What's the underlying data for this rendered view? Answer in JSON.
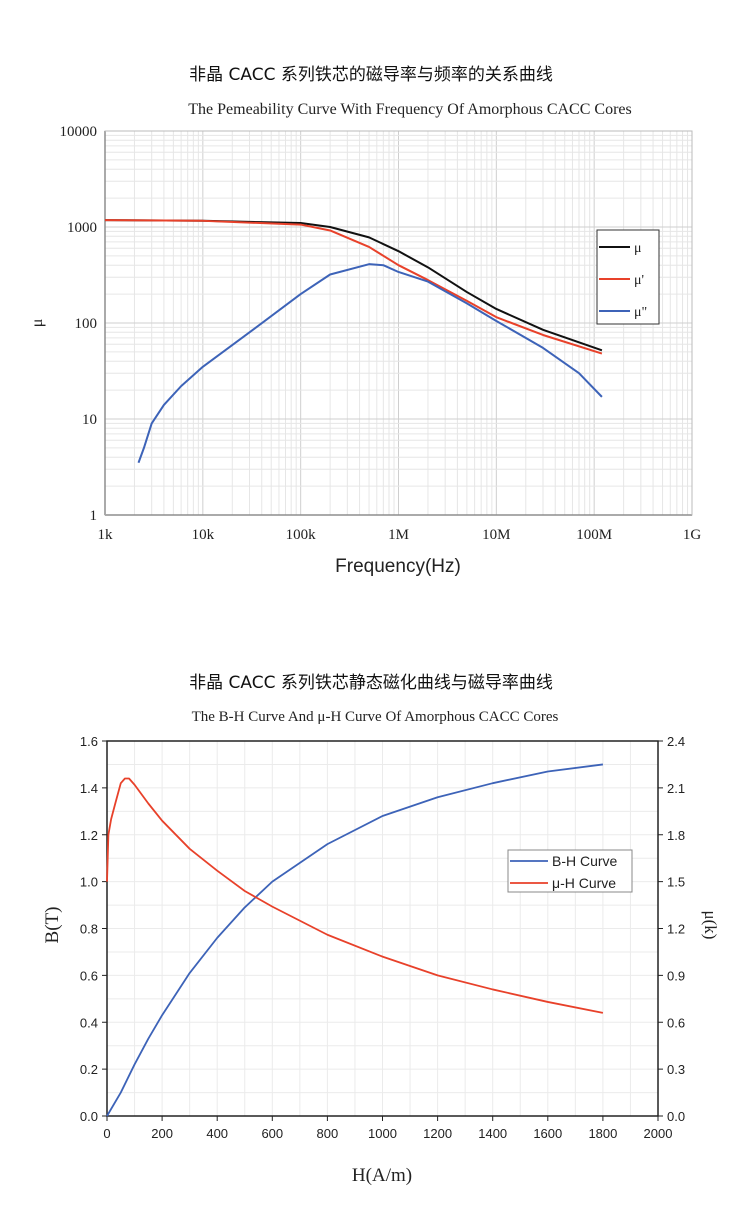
{
  "headings": {
    "chart1_cn": "非晶 CACC 系列铁芯的磁导率与频率的关系曲线",
    "chart2_cn": "非晶 CACC 系列铁芯静态磁化曲线与磁导率曲线"
  },
  "chart_data": [
    {
      "type": "line",
      "title": "The Pemeability Curve With Frequency  Of  Amorphous CACC Cores",
      "xlabel": "Frequency(Hz)",
      "ylabel": "μ",
      "xscale": "log",
      "yscale": "log",
      "xlim": [
        1000,
        1000000000
      ],
      "ylim": [
        1,
        10000
      ],
      "xticks": [
        {
          "v": 1000.0,
          "label": "1k"
        },
        {
          "v": 10000.0,
          "label": "10k"
        },
        {
          "v": 100000.0,
          "label": "100k"
        },
        {
          "v": 1000000.0,
          "label": "1M"
        },
        {
          "v": 10000000.0,
          "label": "10M"
        },
        {
          "v": 100000000.0,
          "label": "100M"
        },
        {
          "v": 1000000000.0,
          "label": "1G"
        }
      ],
      "yticks": [
        {
          "v": 1,
          "label": "1"
        },
        {
          "v": 10,
          "label": "10"
        },
        {
          "v": 100,
          "label": "100"
        },
        {
          "v": 1000,
          "label": "1000"
        },
        {
          "v": 10000,
          "label": "10000"
        }
      ],
      "grid": true,
      "legend": "right",
      "series": [
        {
          "name": "μ",
          "color": "#111111",
          "x": [
            1000.0,
            10000.0,
            100000.0,
            200000.0,
            500000.0,
            1000000.0,
            2000000.0,
            5000000.0,
            10000000.0,
            30000000.0,
            120000000.0
          ],
          "y": [
            1180,
            1160,
            1100,
            1000,
            780,
            560,
            380,
            210,
            140,
            85,
            52
          ]
        },
        {
          "name": "μ'",
          "color": "#e8412a",
          "x": [
            1000.0,
            10000.0,
            100000.0,
            200000.0,
            500000.0,
            1000000.0,
            2000000.0,
            5000000.0,
            10000000.0,
            30000000.0,
            120000000.0
          ],
          "y": [
            1180,
            1160,
            1060,
            920,
            620,
            400,
            280,
            170,
            115,
            75,
            48
          ]
        },
        {
          "name": "μ\"",
          "color": "#3d63b8",
          "x": [
            2200.0,
            2500.0,
            3000.0,
            4000.0,
            6000.0,
            10000.0,
            30000.0,
            100000.0,
            200000.0,
            500000.0,
            700000.0,
            1000000.0,
            2000000.0,
            5000000.0,
            10000000.0,
            30000000.0,
            70000000.0,
            120000000.0
          ],
          "y": [
            3.5,
            5,
            9,
            14,
            22,
            35,
            80,
            200,
            320,
            410,
            400,
            340,
            270,
            160,
            105,
            55,
            30,
            17
          ]
        }
      ]
    },
    {
      "type": "line",
      "title": "The B-H Curve And μ-H Curve Of Amorphous CACC Cores",
      "xlabel": "H(A/m)",
      "ylabel": "B(T)",
      "ylabel_right": "μ(k)",
      "xlim": [
        0,
        2000
      ],
      "ylim": [
        0,
        1.6
      ],
      "ylim_right": [
        0,
        2.4
      ],
      "xticks": [
        "0",
        "200",
        "400",
        "600",
        "800",
        "1000",
        "1200",
        "1400",
        "1600",
        "1800",
        "2000"
      ],
      "yticks": [
        "0.0",
        "0.2",
        "0.4",
        "0.6",
        "0.8",
        "1.0",
        "1.2",
        "1.4",
        "1.6"
      ],
      "yticks_right": [
        "0.0",
        "0.3",
        "0.6",
        "0.9",
        "1.2",
        "1.5",
        "1.8",
        "2.1",
        "2.4"
      ],
      "grid": true,
      "legend": "right",
      "series": [
        {
          "name": "B-H Curve",
          "axis": "left",
          "color": "#3d63b8",
          "x": [
            0,
            50,
            100,
            150,
            200,
            300,
            400,
            500,
            600,
            700,
            800,
            1000,
            1200,
            1400,
            1600,
            1800
          ],
          "y": [
            0,
            0.1,
            0.22,
            0.33,
            0.43,
            0.61,
            0.76,
            0.89,
            1.0,
            1.08,
            1.16,
            1.28,
            1.36,
            1.42,
            1.47,
            1.5
          ]
        },
        {
          "name": "μ-H Curve",
          "axis": "right",
          "color": "#e8412a",
          "x": [
            0,
            5,
            15,
            30,
            50,
            65,
            80,
            100,
            150,
            200,
            300,
            400,
            500,
            600,
            800,
            1000,
            1200,
            1400,
            1600,
            1800
          ],
          "y": [
            1.5,
            1.8,
            1.9,
            2.0,
            2.13,
            2.16,
            2.16,
            2.12,
            2.0,
            1.89,
            1.71,
            1.57,
            1.44,
            1.34,
            1.16,
            1.02,
            0.9,
            0.81,
            0.73,
            0.66
          ]
        }
      ]
    }
  ]
}
